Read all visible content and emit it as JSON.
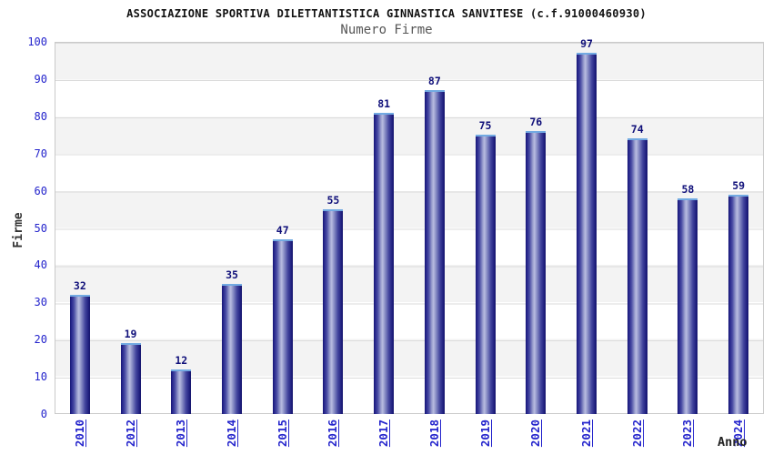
{
  "chart_data": {
    "type": "bar",
    "title": "ASSOCIAZIONE SPORTIVA DILETTANTISTICA GINNASTICA SANVITESE (c.f.91000460930)",
    "subtitle": "Numero Firme",
    "xlabel": "Anno",
    "ylabel": "Firme",
    "categories": [
      "2010",
      "2012",
      "2013",
      "2014",
      "2015",
      "2016",
      "2017",
      "2018",
      "2019",
      "2020",
      "2021",
      "2022",
      "2023",
      "2024"
    ],
    "values": [
      32,
      19,
      12,
      35,
      47,
      55,
      81,
      87,
      75,
      76,
      97,
      74,
      58,
      59
    ],
    "ylim": [
      0,
      100
    ],
    "yticks": [
      0,
      10,
      20,
      30,
      40,
      50,
      60,
      70,
      80,
      90,
      100
    ],
    "grid": "horizontal-bands",
    "legend": "none",
    "colors": {
      "bar_dark": "#1c1c86",
      "bar_light": "#b8bce0",
      "bar_cap": "#72aae2",
      "value_label": "#10107a",
      "tick_label": "#2424cc",
      "year_link": "#2424cc",
      "band_gray": "#f3f3f3",
      "band_white": "#ffffff",
      "gridline": "#dbdbdb",
      "title": "#111111",
      "subtitle": "#555555",
      "axis_title": "#333333"
    }
  }
}
